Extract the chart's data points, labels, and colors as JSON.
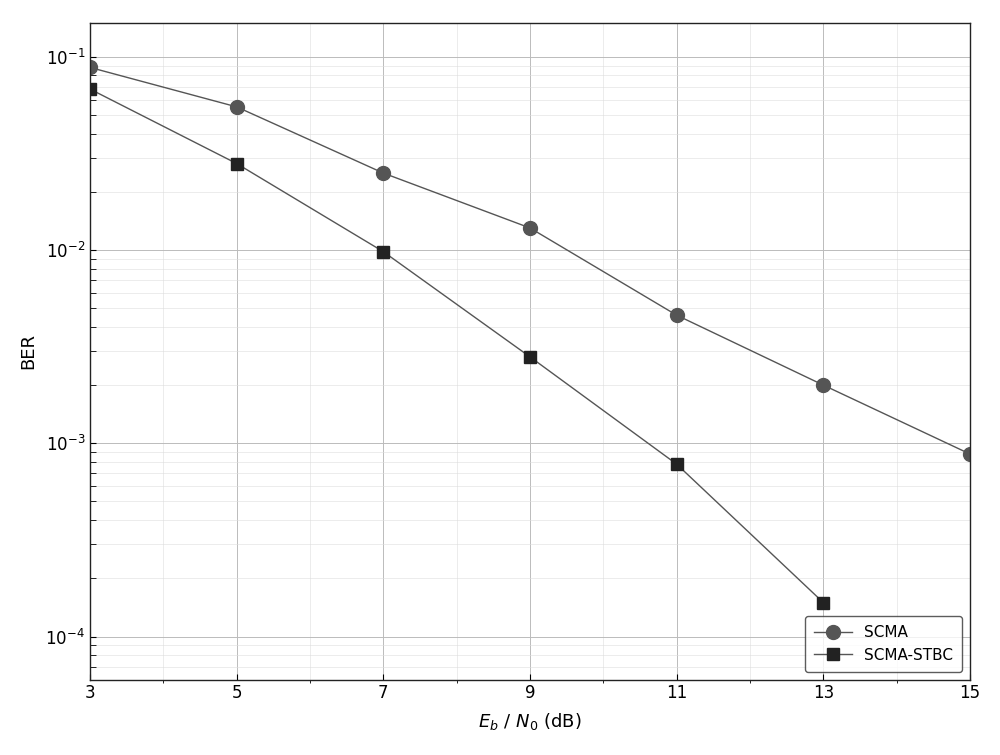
{
  "scma_x": [
    3,
    5,
    7,
    9,
    11,
    13,
    15
  ],
  "scma_y": [
    0.088,
    0.055,
    0.025,
    0.013,
    0.0046,
    0.002,
    0.00088
  ],
  "scma_stbc_x": [
    3,
    5,
    7,
    9,
    11,
    13
  ],
  "scma_stbc_y": [
    0.068,
    0.028,
    0.0098,
    0.0028,
    0.00078,
    0.00015
  ],
  "xlabel": "$E_b\\ /\\ N_0$ (dB)",
  "ylabel": "BER",
  "xlim": [
    3,
    15
  ],
  "ylim": [
    6e-05,
    0.15
  ],
  "xticks": [
    3,
    5,
    7,
    9,
    11,
    13,
    15
  ],
  "line_color": "#555555",
  "marker_color_scma": "#555555",
  "marker_color_stbc": "#222222",
  "legend_scma": "SCMA",
  "legend_stbc": "SCMA-STBC",
  "bg_color": "#ffffff",
  "grid_major_color": "#bbbbbb",
  "grid_minor_color": "#dddddd"
}
